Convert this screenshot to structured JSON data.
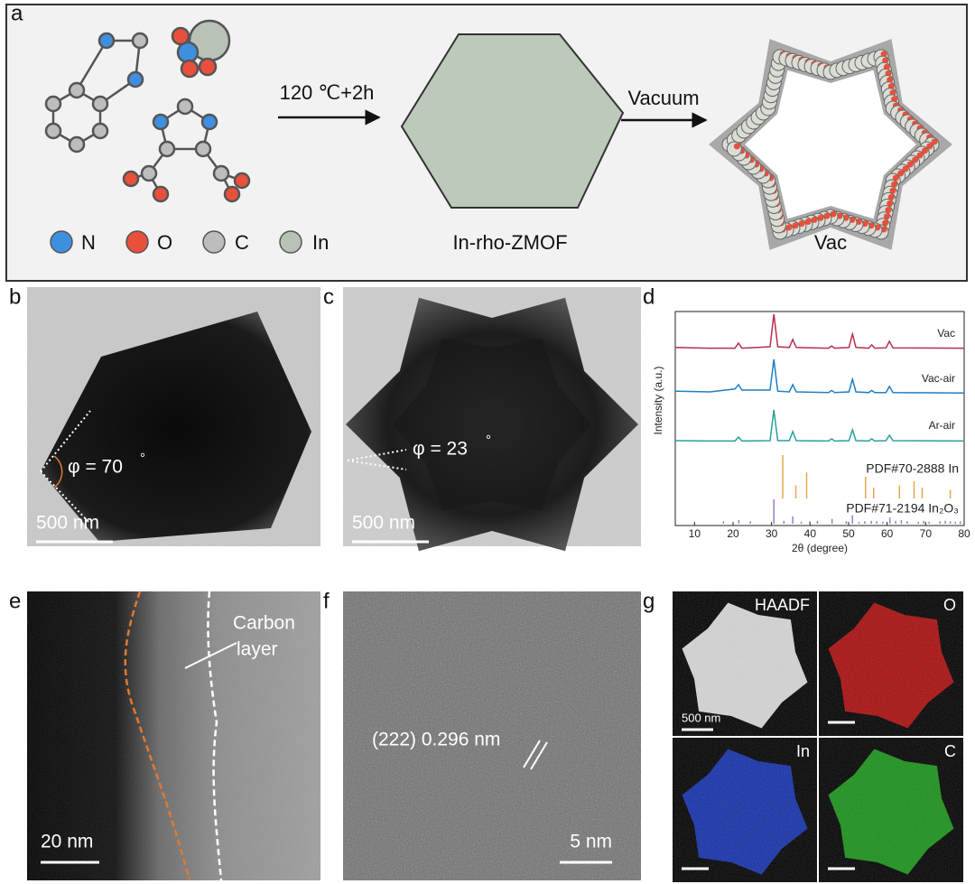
{
  "panels": {
    "a": {
      "label": "a",
      "legend": [
        "N",
        "O",
        "C",
        "In"
      ],
      "step_1": "120 ℃+2h",
      "product_1": "In-rho-ZMOF",
      "step_2": "Vacuum",
      "product_2": "Vac"
    },
    "b": {
      "label": "b",
      "angle": "φ = 70",
      "degree": "°",
      "scale_bar": "500 nm"
    },
    "c": {
      "label": "c",
      "angle": "φ = 23",
      "degree": "°",
      "scale_bar": "500 nm"
    },
    "d": {
      "label": "d"
    },
    "e": {
      "label": "e",
      "annotation": [
        "Carbon",
        "layer"
      ],
      "scale_bar": "20 nm"
    },
    "f": {
      "label": "f",
      "annotation": "(222) 0.296 nm",
      "scale_bar": "5 nm"
    },
    "g": {
      "label": "g",
      "maps": [
        "HAADF",
        "O",
        "In",
        "C"
      ],
      "scale_bar": "500 nm"
    }
  },
  "chart_data": {
    "type": "line",
    "xlabel": "2θ (degree)",
    "ylabel": "Intensity (a.u.)",
    "xlim": [
      5,
      80
    ],
    "xticks": [
      10,
      20,
      30,
      40,
      50,
      60,
      70,
      80
    ],
    "x": [
      5,
      14,
      20.5,
      21.4,
      22.3,
      29.6,
      30.6,
      31.6,
      34.6,
      35.5,
      36.4,
      44.8,
      45.6,
      46.4,
      50.1,
      51,
      51.9,
      55.2,
      56,
      56.8,
      59.7,
      60.6,
      61.5,
      80
    ],
    "series": [
      {
        "name": "Vac",
        "color": "#b5304c",
        "values": [
          0.08,
          0.06,
          0.06,
          0.2,
          0.06,
          0.1,
          1.0,
          0.1,
          0.08,
          0.3,
          0.08,
          0.06,
          0.12,
          0.06,
          0.08,
          0.45,
          0.08,
          0.06,
          0.15,
          0.06,
          0.07,
          0.25,
          0.07,
          0.06
        ]
      },
      {
        "name": "Vac-air",
        "color": "#1f7fc4",
        "values": [
          0.12,
          0.1,
          0.18,
          0.3,
          0.15,
          0.15,
          1.0,
          0.12,
          0.1,
          0.3,
          0.1,
          0.08,
          0.14,
          0.08,
          0.1,
          0.45,
          0.1,
          0.08,
          0.14,
          0.08,
          0.08,
          0.25,
          0.08,
          0.07
        ]
      },
      {
        "name": "Ar-air",
        "color": "#2a9f9f",
        "values": [
          0.05,
          0.04,
          0.04,
          0.15,
          0.04,
          0.05,
          0.9,
          0.05,
          0.05,
          0.3,
          0.05,
          0.04,
          0.1,
          0.04,
          0.05,
          0.35,
          0.05,
          0.04,
          0.1,
          0.04,
          0.05,
          0.2,
          0.05,
          0.04
        ]
      }
    ],
    "references": [
      {
        "name": "PDF#70-2888 In",
        "color": "#e5a94a",
        "x": [
          32.9,
          36.3,
          39.1,
          54.4,
          56.5,
          63.2,
          67.0,
          69.1,
          76.4
        ],
        "values": [
          1,
          0.3,
          0.6,
          0.5,
          0.25,
          0.3,
          0.4,
          0.25,
          0.2
        ]
      },
      {
        "name": "PDF#71-2194 In₂O₃",
        "color": "#8b86c8",
        "x": [
          17.5,
          21.5,
          24.5,
          30.6,
          33.2,
          35.5,
          37.7,
          39.9,
          41.9,
          45.7,
          49.4,
          51.0,
          52.7,
          54.2,
          55.9,
          57.3,
          58.9,
          60.7,
          62.2,
          63.7,
          65.2,
          68.1,
          69.5,
          70.9,
          73.7,
          75.1,
          76.4,
          77.7,
          79.0
        ],
        "values": [
          0.1,
          0.15,
          0.1,
          1,
          0.12,
          0.3,
          0.08,
          0.1,
          0.12,
          0.2,
          0.1,
          0.35,
          0.08,
          0.1,
          0.12,
          0.1,
          0.08,
          0.25,
          0.12,
          0.15,
          0.1,
          0.08,
          0.12,
          0.08,
          0.1,
          0.12,
          0.1,
          0.08,
          0.1
        ]
      }
    ]
  }
}
